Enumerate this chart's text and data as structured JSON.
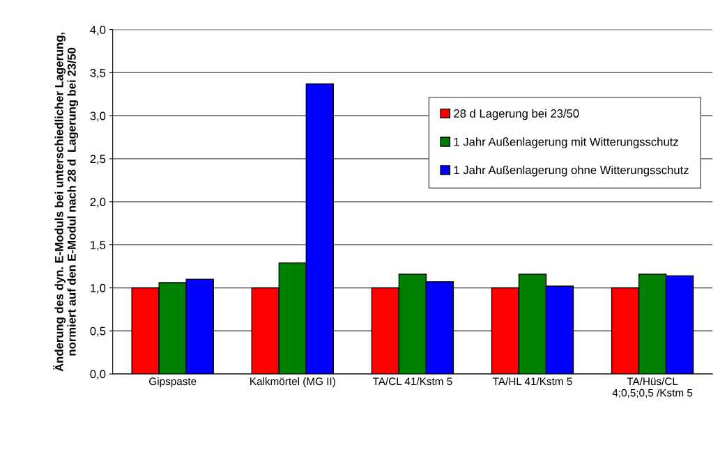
{
  "chart_data": {
    "type": "bar",
    "ylabel": "Änderung des dyn. E-Moduls bei unterschiedlicher Lagerung,\nnormiert auf den E-Modul nach 28 d  Lagerung bei 23/50",
    "categories": [
      "Gipspaste",
      "Kalkmörtel (MG II)",
      "TA/CL 41/Kstm 5",
      "TA/HL 41/Kstm 5",
      "TA/Hüs/CL\n4;0,5;0,5 /Kstm 5"
    ],
    "series": [
      {
        "name": "28 d Lagerung bei 23/50",
        "color": "#ff0000",
        "values": [
          1.0,
          1.0,
          1.0,
          1.0,
          1.0
        ]
      },
      {
        "name": "1 Jahr Außenlagerung mit Witterungsschutz",
        "color": "#008000",
        "values": [
          1.06,
          1.29,
          1.16,
          1.16,
          1.16
        ]
      },
      {
        "name": "1 Jahr Außenlagerung ohne Witterungsschutz",
        "color": "#0000ff",
        "values": [
          1.1,
          3.37,
          1.07,
          1.02,
          1.14
        ]
      }
    ],
    "ylim": [
      0,
      4
    ],
    "yticks": [
      {
        "value": 0,
        "label": "0,0"
      },
      {
        "value": 0.5,
        "label": "0,5"
      },
      {
        "value": 1,
        "label": "1,0"
      },
      {
        "value": 1.5,
        "label": "1,5"
      },
      {
        "value": 2,
        "label": "2,0"
      },
      {
        "value": 2.5,
        "label": "2,5"
      },
      {
        "value": 3,
        "label": "3,0"
      },
      {
        "value": 3.5,
        "label": "3,5"
      },
      {
        "value": 4,
        "label": "4,0"
      }
    ],
    "grid": "y",
    "legend": "top right"
  }
}
